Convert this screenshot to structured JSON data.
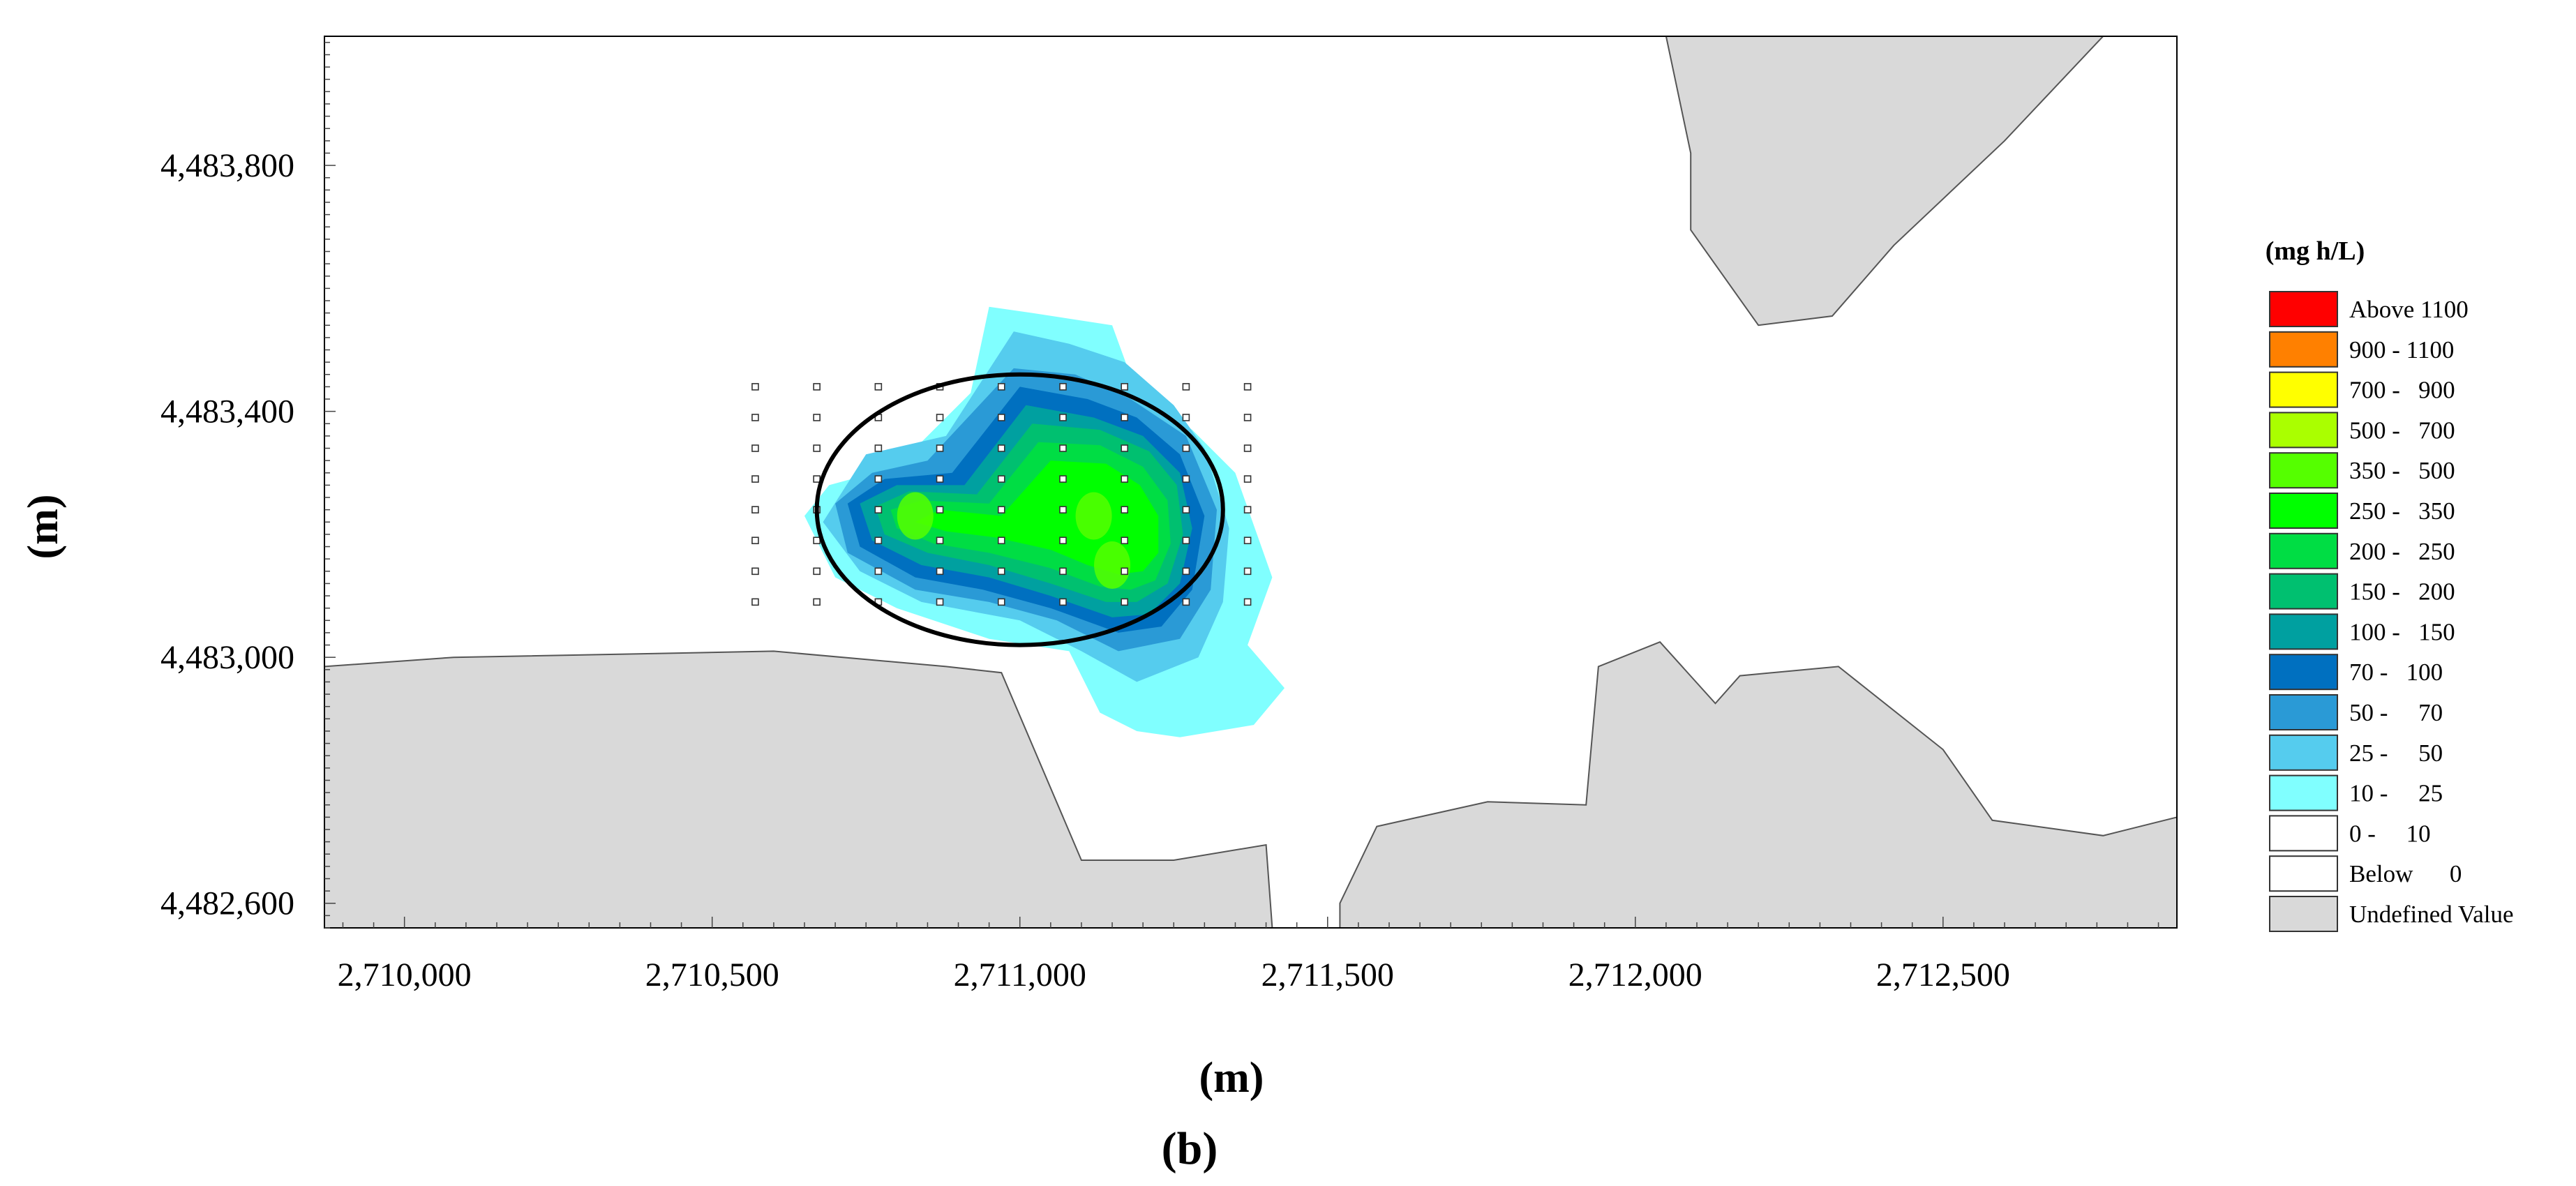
{
  "chart_data": {
    "type": "heatmap",
    "title": "",
    "panel_label": "(b)",
    "xlabel": "(m)",
    "ylabel": "(m)",
    "xlim": [
      2709870,
      2712880
    ],
    "ylim": [
      4482560,
      4484010
    ],
    "x_ticks": [
      2710000,
      2710500,
      2711000,
      2711500,
      2712000,
      2712500
    ],
    "x_tick_labels": [
      "2,710,000",
      "2,710,500",
      "2,711,000",
      "2,711,500",
      "2,712,000",
      "2,712,500"
    ],
    "y_ticks": [
      4482600,
      4483000,
      4483400,
      4483800
    ],
    "y_tick_labels": [
      "4,482,600",
      "4,483,000",
      "4,483,400",
      "4,483,800"
    ],
    "legend": {
      "title": "(mg h/L)",
      "placement": "right",
      "entries": [
        {
          "label": "Above 1100",
          "color": "#ff0000"
        },
        {
          "label": "900 - 1100",
          "color": "#ff8000"
        },
        {
          "label": "700 -   900",
          "color": "#ffff00"
        },
        {
          "label": "500 -   700",
          "color": "#aaff00"
        },
        {
          "label": "350 -   500",
          "color": "#55ff00"
        },
        {
          "label": "250 -   350",
          "color": "#00ff00"
        },
        {
          "label": "200 -   250",
          "color": "#00dd44"
        },
        {
          "label": "150 -   200",
          "color": "#00c070"
        },
        {
          "label": "100 -   150",
          "color": "#00a0a0"
        },
        {
          "label": "70 -   100",
          "color": "#0070c0"
        },
        {
          "label": "50 -     70",
          "color": "#2a9ad6"
        },
        {
          "label": "25 -     50",
          "color": "#55ccee"
        },
        {
          "label": "10 -     25",
          "color": "#80ffff"
        },
        {
          "label": "0 -     10",
          "color": "#ffffff"
        },
        {
          "label": "Below      0",
          "color": "#ffffff"
        },
        {
          "label": "Undefined Value",
          "color": "#d9d9d9"
        }
      ]
    },
    "undefined_regions": [
      [
        [
          2709870,
          4482560
        ],
        [
          2709870,
          4482985
        ],
        [
          2710080,
          4483000
        ],
        [
          2710350,
          4483005
        ],
        [
          2710600,
          4483010
        ],
        [
          2710880,
          4482985
        ],
        [
          2710970,
          4482975
        ],
        [
          2711100,
          4482670
        ],
        [
          2711250,
          4482670
        ],
        [
          2711400,
          4482695
        ],
        [
          2711410,
          4482560
        ]
      ],
      [
        [
          2711520,
          4482560
        ],
        [
          2711520,
          4482600
        ],
        [
          2711580,
          4482725
        ],
        [
          2711760,
          4482765
        ],
        [
          2711920,
          4482760
        ],
        [
          2711940,
          4482985
        ],
        [
          2712040,
          4483025
        ],
        [
          2712130,
          4482925
        ],
        [
          2712170,
          4482970
        ],
        [
          2712330,
          4482985
        ],
        [
          2712500,
          4482850
        ],
        [
          2712580,
          4482735
        ],
        [
          2712760,
          4482710
        ],
        [
          2712880,
          4482740
        ],
        [
          2712880,
          4482560
        ]
      ],
      [
        [
          2712050,
          4484010
        ],
        [
          2712090,
          4483820
        ],
        [
          2712090,
          4483695
        ],
        [
          2712200,
          4483540
        ],
        [
          2712320,
          4483555
        ],
        [
          2712420,
          4483670
        ],
        [
          2712600,
          4483840
        ],
        [
          2712760,
          4484010
        ]
      ]
    ],
    "contours": [
      {
        "range": "10 - 25",
        "color": "#80ffff",
        "polygon": [
          [
            2710800,
            4483310
          ],
          [
            2710920,
            4483430
          ],
          [
            2710950,
            4483570
          ],
          [
            2711020,
            4483560
          ],
          [
            2711150,
            4483540
          ],
          [
            2711190,
            4483430
          ],
          [
            2711280,
            4483370
          ],
          [
            2711350,
            4483300
          ],
          [
            2711410,
            4483130
          ],
          [
            2711370,
            4483020
          ],
          [
            2711430,
            4482950
          ],
          [
            2711380,
            4482890
          ],
          [
            2711260,
            4482870
          ],
          [
            2711190,
            4482880
          ],
          [
            2711130,
            4482910
          ],
          [
            2711080,
            4483010
          ],
          [
            2710950,
            4483030
          ],
          [
            2710800,
            4483080
          ],
          [
            2710700,
            4483130
          ],
          [
            2710650,
            4483230
          ],
          [
            2710690,
            4483280
          ]
        ]
      },
      {
        "range": "25 - 50",
        "color": "#55ccee",
        "polygon": [
          [
            2710750,
            4483330
          ],
          [
            2710880,
            4483360
          ],
          [
            2710990,
            4483530
          ],
          [
            2711080,
            4483510
          ],
          [
            2711170,
            4483480
          ],
          [
            2711250,
            4483410
          ],
          [
            2711300,
            4483340
          ],
          [
            2711340,
            4483210
          ],
          [
            2711330,
            4483090
          ],
          [
            2711290,
            4483000
          ],
          [
            2711190,
            4482960
          ],
          [
            2711100,
            4483010
          ],
          [
            2711000,
            4483060
          ],
          [
            2710840,
            4483090
          ],
          [
            2710740,
            4483140
          ],
          [
            2710680,
            4483220
          ]
        ]
      },
      {
        "range": "50 - 70",
        "color": "#2a9ad6",
        "polygon": [
          [
            2710760,
            4483300
          ],
          [
            2710850,
            4483320
          ],
          [
            2710990,
            4483470
          ],
          [
            2711090,
            4483460
          ],
          [
            2711180,
            4483420
          ],
          [
            2711270,
            4483360
          ],
          [
            2711320,
            4483240
          ],
          [
            2711310,
            4483110
          ],
          [
            2711260,
            4483030
          ],
          [
            2711160,
            4483010
          ],
          [
            2711060,
            4483060
          ],
          [
            2710950,
            4483090
          ],
          [
            2710830,
            4483110
          ],
          [
            2710720,
            4483170
          ],
          [
            2710700,
            4483250
          ]
        ]
      },
      {
        "range": "70 - 100",
        "color": "#0070c0",
        "polygon": [
          [
            2710780,
            4483290
          ],
          [
            2710890,
            4483300
          ],
          [
            2711000,
            4483440
          ],
          [
            2711110,
            4483420
          ],
          [
            2711190,
            4483390
          ],
          [
            2711260,
            4483330
          ],
          [
            2711300,
            4483230
          ],
          [
            2711280,
            4483110
          ],
          [
            2711230,
            4483050
          ],
          [
            2711160,
            4483040
          ],
          [
            2711050,
            4483080
          ],
          [
            2710940,
            4483110
          ],
          [
            2710830,
            4483130
          ],
          [
            2710740,
            4483180
          ],
          [
            2710720,
            4483250
          ]
        ]
      },
      {
        "range": "100 - 150",
        "color": "#00a0a0",
        "polygon": [
          [
            2710800,
            4483280
          ],
          [
            2710910,
            4483280
          ],
          [
            2711010,
            4483410
          ],
          [
            2711120,
            4483390
          ],
          [
            2711200,
            4483360
          ],
          [
            2711260,
            4483300
          ],
          [
            2711280,
            4483210
          ],
          [
            2711260,
            4483120
          ],
          [
            2711210,
            4483070
          ],
          [
            2711150,
            4483065
          ],
          [
            2711050,
            4483100
          ],
          [
            2710950,
            4483130
          ],
          [
            2710840,
            4483150
          ],
          [
            2710760,
            4483190
          ],
          [
            2710740,
            4483250
          ]
        ]
      },
      {
        "range": "150 - 200",
        "color": "#00c070",
        "polygon": [
          [
            2710820,
            4483270
          ],
          [
            2710930,
            4483265
          ],
          [
            2711020,
            4483380
          ],
          [
            2711130,
            4483370
          ],
          [
            2711210,
            4483335
          ],
          [
            2711255,
            4483280
          ],
          [
            2711265,
            4483200
          ],
          [
            2711240,
            4483120
          ],
          [
            2711190,
            4483090
          ],
          [
            2711140,
            4483090
          ],
          [
            2711050,
            4483120
          ],
          [
            2710950,
            4483150
          ],
          [
            2710850,
            4483170
          ],
          [
            2710780,
            4483200
          ],
          [
            2710765,
            4483245
          ]
        ]
      },
      {
        "range": "200 - 250",
        "color": "#00dd44",
        "polygon": [
          [
            2710840,
            4483255
          ],
          [
            2710950,
            4483250
          ],
          [
            2711030,
            4483350
          ],
          [
            2711130,
            4483345
          ],
          [
            2711200,
            4483310
          ],
          [
            2711240,
            4483255
          ],
          [
            2711245,
            4483185
          ],
          [
            2711220,
            4483125
          ],
          [
            2711180,
            4483110
          ],
          [
            2711130,
            4483115
          ],
          [
            2711050,
            4483145
          ],
          [
            2710950,
            4483170
          ],
          [
            2710860,
            4483185
          ],
          [
            2710800,
            4483210
          ],
          [
            2710790,
            4483240
          ]
        ]
      },
      {
        "range": "250 - 350",
        "color": "#00ff00",
        "polygon": [
          [
            2710870,
            4483240
          ],
          [
            2710970,
            4483230
          ],
          [
            2711050,
            4483320
          ],
          [
            2711140,
            4483315
          ],
          [
            2711195,
            4483280
          ],
          [
            2711225,
            4483230
          ],
          [
            2711225,
            4483170
          ],
          [
            2711200,
            4483140
          ],
          [
            2711160,
            4483135
          ],
          [
            2711110,
            4483150
          ],
          [
            2711050,
            4483175
          ],
          [
            2710960,
            4483195
          ],
          [
            2710880,
            4483205
          ],
          [
            2710830,
            4483220
          ]
        ]
      }
    ],
    "hotspots_350_500": [
      [
        2710830,
        4483230
      ],
      [
        2711120,
        4483230
      ],
      [
        2711150,
        4483150
      ]
    ],
    "receptor_grid": {
      "x": [
        2710570,
        2710670,
        2710770,
        2710870,
        2710970,
        2711070,
        2711170,
        2711270,
        2711370
      ],
      "y": [
        4483440,
        4483390,
        4483340,
        4483290,
        4483240,
        4483190,
        4483140,
        4483090
      ]
    },
    "highlight_ellipse": {
      "center": [
        2711000,
        4483240
      ],
      "rx": 330,
      "ry": 220
    }
  }
}
